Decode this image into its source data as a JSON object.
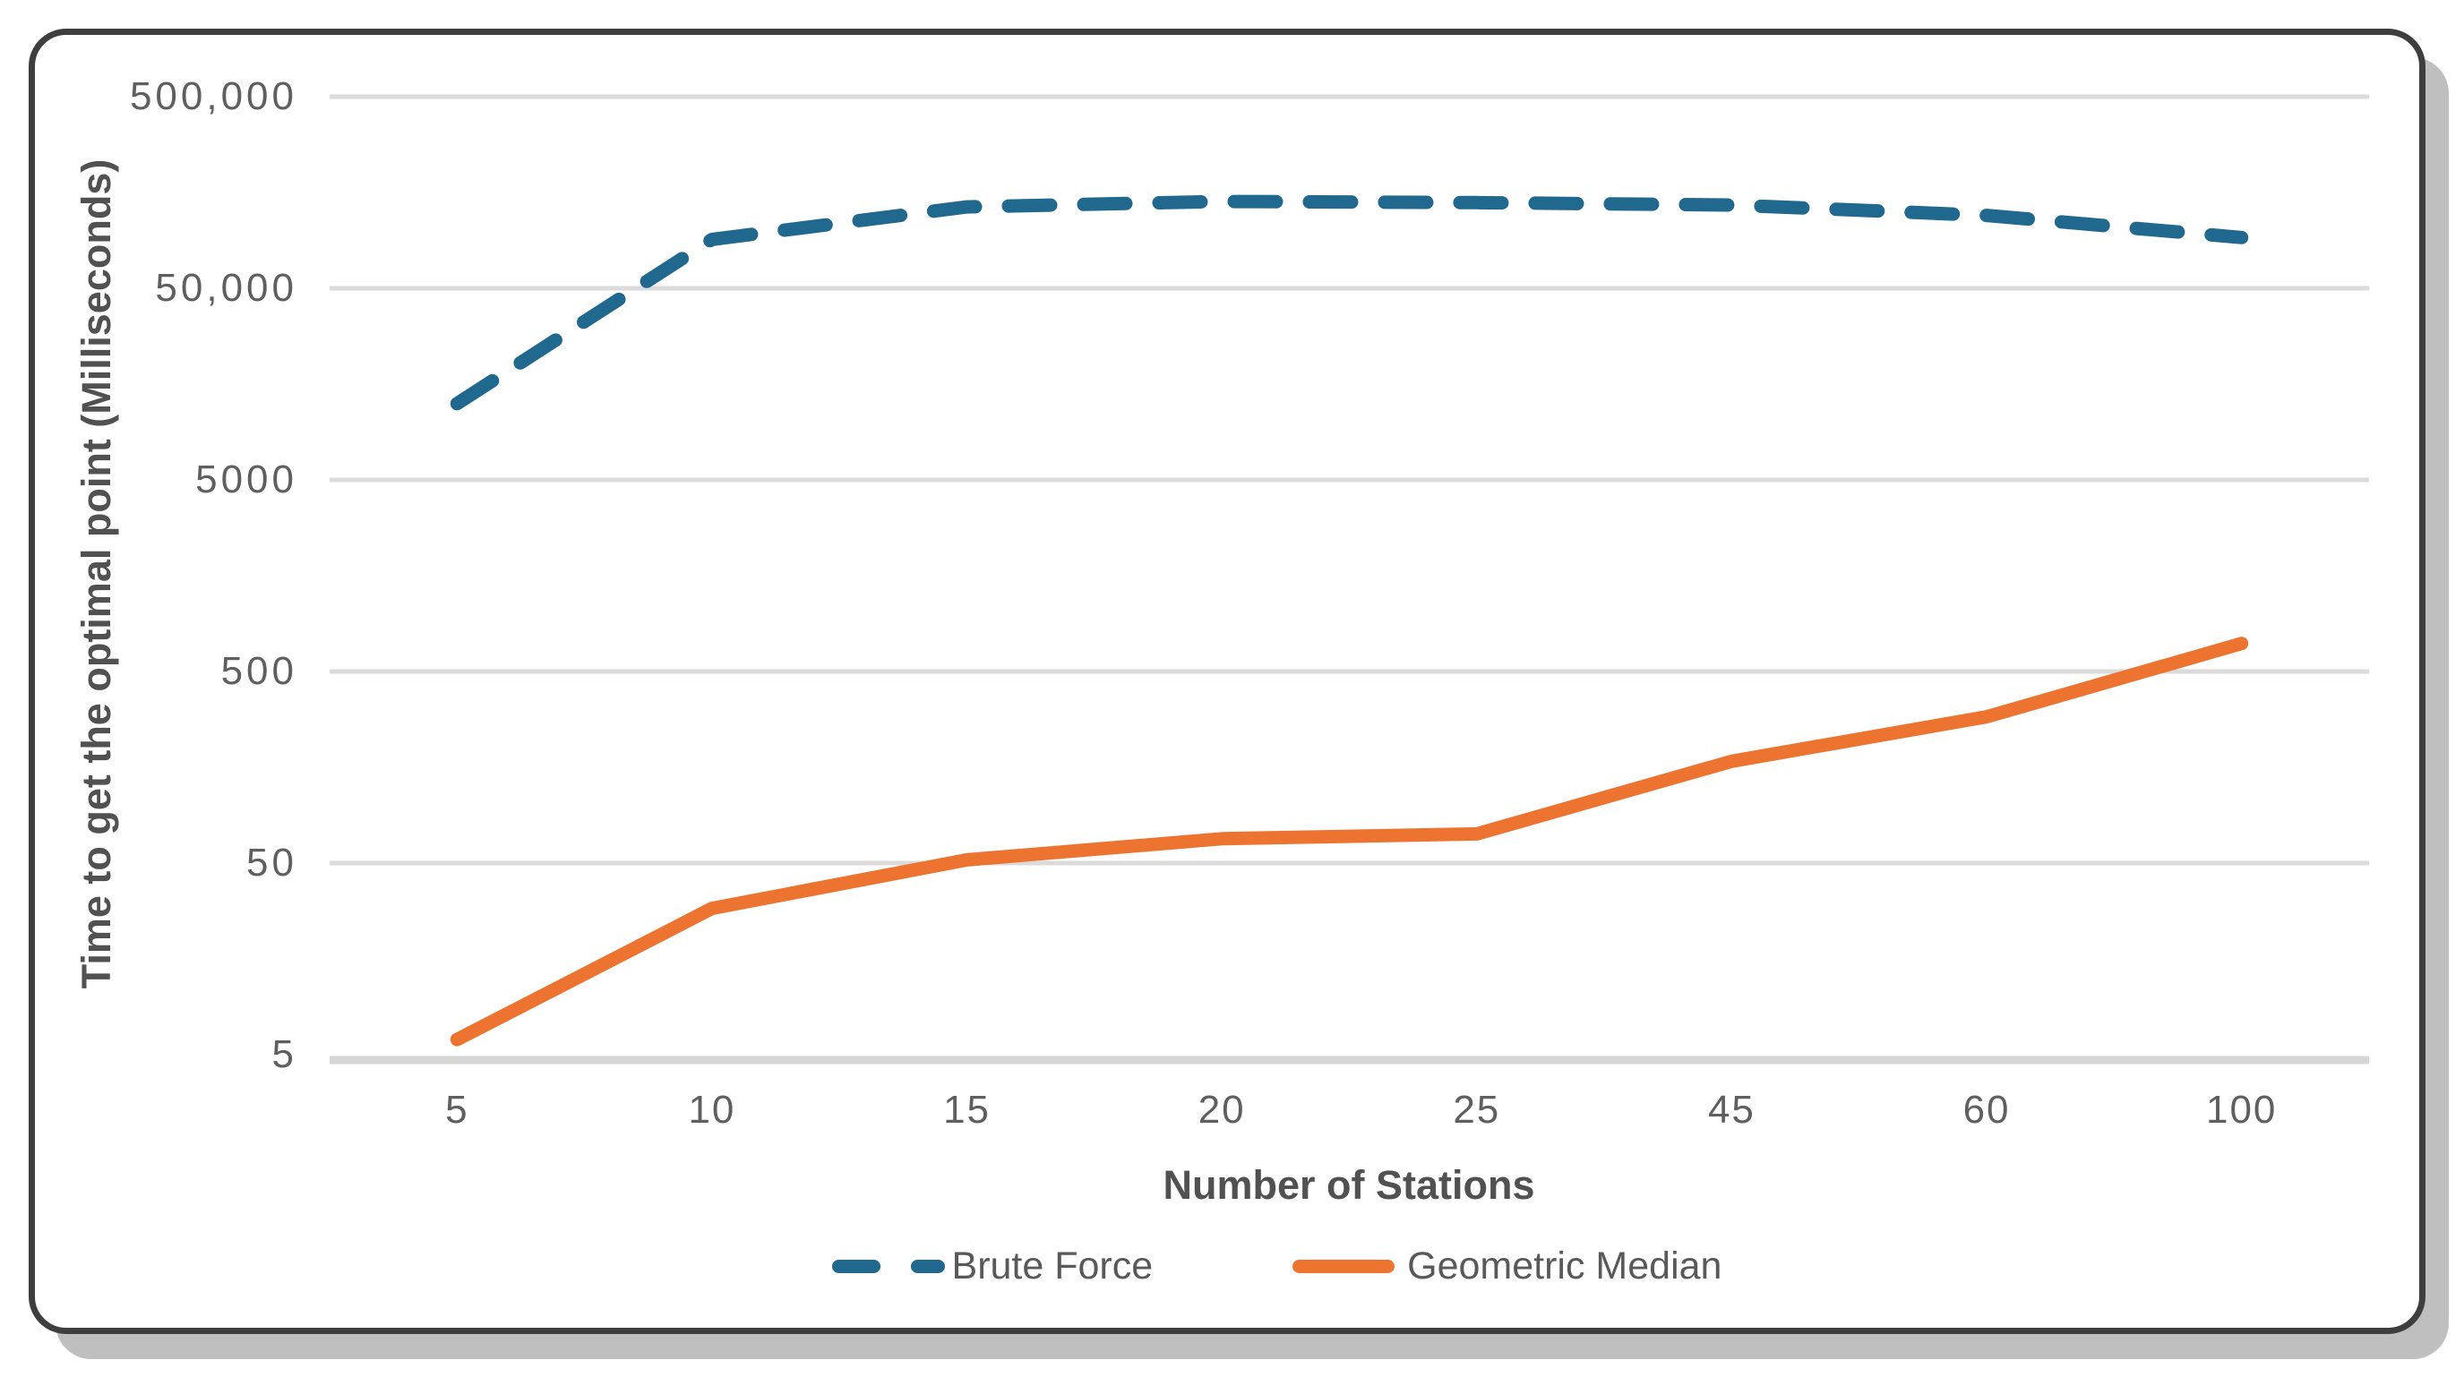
{
  "figure": {
    "background_color": "#ffffff",
    "card_border_color": "#3e3e3e",
    "card_shadow_color": "#bfbfbf",
    "grid_color": "#dbdbdb",
    "axis_line_color": "#d6d6d6",
    "tick_text_color": "#5f5f5f",
    "axis_title_color": "#515151"
  },
  "chart_data": {
    "type": "line",
    "title": "",
    "xlabel": "Number of Stations",
    "ylabel": "Time to get the optimal point (Milliseconds)",
    "x_categories": [
      "5",
      "10",
      "15",
      "20",
      "25",
      "45",
      "60",
      "100"
    ],
    "y_scale": "log",
    "ylim": [
      5,
      500000
    ],
    "grid": "horizontal",
    "legend_position": "bottom-center",
    "y_ticks": [
      {
        "value": 500000,
        "label": "500,000"
      },
      {
        "value": 50000,
        "label": "50,000"
      },
      {
        "value": 5000,
        "label": "5000"
      },
      {
        "value": 500,
        "label": "500"
      },
      {
        "value": 50,
        "label": "50"
      },
      {
        "value": 5,
        "label": "5"
      }
    ],
    "series": [
      {
        "name": "Brute Force",
        "color": "#21688E",
        "line_style": "dashed",
        "values": [
          12500,
          90000,
          133000,
          142000,
          140000,
          136000,
          120000,
          92000
        ]
      },
      {
        "name": "Geometric Median",
        "color": "#ED7430",
        "line_style": "solid",
        "values": [
          6,
          29,
          52,
          67,
          71,
          170,
          290,
          700
        ]
      }
    ]
  }
}
